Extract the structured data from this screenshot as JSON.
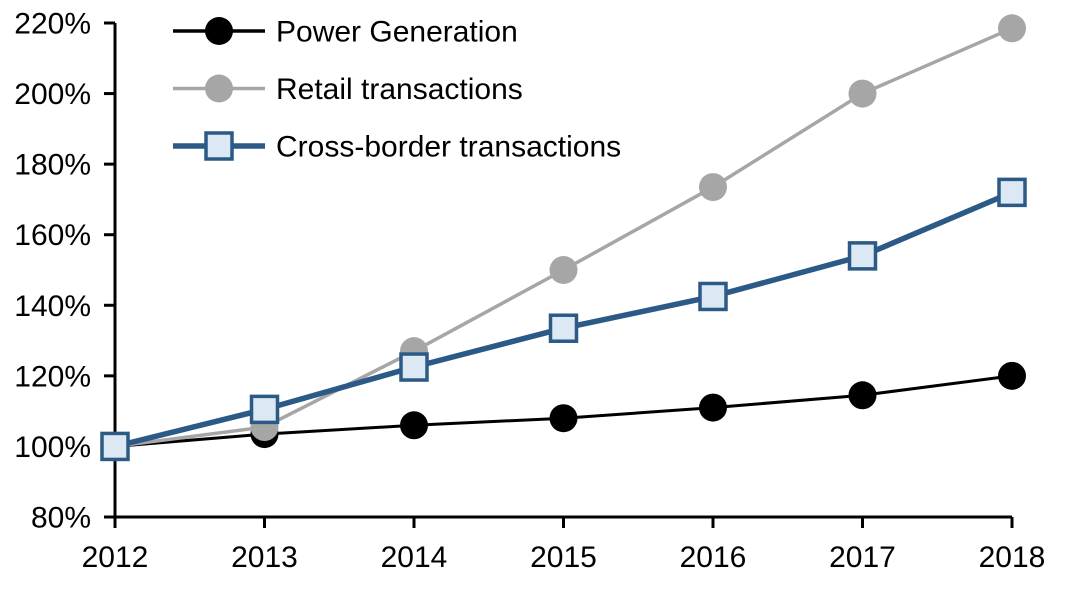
{
  "chart_data": {
    "type": "line",
    "title": "",
    "xlabel": "",
    "ylabel": "",
    "grid": false,
    "legend_position": "top-left",
    "background_color": "#FFFFFF",
    "axis_color": "#000000",
    "x": [
      2012,
      2013,
      2014,
      2015,
      2016,
      2017,
      2018
    ],
    "x_tick_labels": [
      "2012",
      "2013",
      "2014",
      "2015",
      "2016",
      "2017",
      "2018"
    ],
    "ylim": [
      80,
      220
    ],
    "y_ticks": [
      220,
      200,
      180,
      160,
      140,
      120,
      100,
      80
    ],
    "y_tick_labels": [
      "220%",
      "200%",
      "180%",
      "160%",
      "140%",
      "120%",
      "100%",
      "80%"
    ],
    "series": [
      {
        "name": "Power Generation",
        "values": [
          100,
          103.5,
          106,
          108,
          111,
          114.5,
          120
        ],
        "line_color": "#000000",
        "line_width": 3,
        "marker": "circle",
        "marker_fill": "#000000",
        "marker_stroke": "#000000"
      },
      {
        "name": "Retail transactions",
        "values": [
          100,
          105.5,
          127,
          150,
          173.5,
          200,
          218.5
        ],
        "line_color": "#A6A6A6",
        "line_width": 3.5,
        "marker": "circle",
        "marker_fill": "#A6A6A6",
        "marker_stroke": "#A6A6A6"
      },
      {
        "name": "Cross-border transactions",
        "values": [
          100,
          110.5,
          122.5,
          133.5,
          142.5,
          154,
          172
        ],
        "line_color": "#2B5A87",
        "line_width": 5.5,
        "marker": "square",
        "marker_fill": "#DCE8F4",
        "marker_stroke": "#2B5A87"
      }
    ]
  }
}
